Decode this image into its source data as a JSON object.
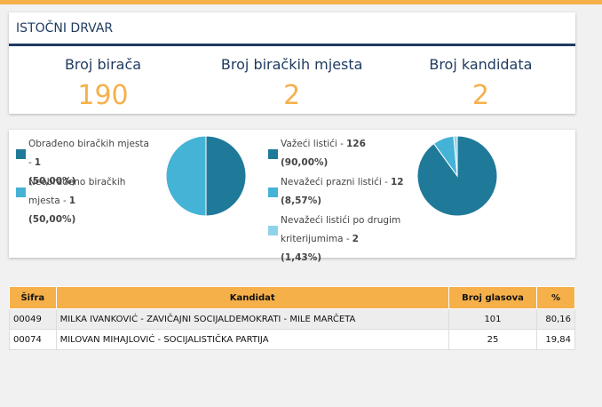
{
  "header": {
    "title": "ISTOČNI DRVAR"
  },
  "stats": [
    {
      "label": "Broj birača",
      "value": 190
    },
    {
      "label": "Broj biračkih mjesta",
      "value": 2
    },
    {
      "label": "Broj kandidata",
      "value": 2
    }
  ],
  "pies": [
    {
      "slices": [
        {
          "label": "Obrađeno biračkih mjesta -",
          "value": 1,
          "percent": "(50,00%)",
          "color": "#1f7a99"
        },
        {
          "label": "Neobrađeno biračkih mjesta -",
          "value": 1,
          "percent": "(50,00%)",
          "color": "#45b3d6"
        }
      ]
    },
    {
      "slices": [
        {
          "label": "Važeći listići -",
          "value": 126,
          "percent": "(90,00%)",
          "color": "#1f7a99"
        },
        {
          "label": "Nevažeći prazni listići -",
          "value": 12,
          "percent": "(8,57%)",
          "color": "#45b3d6"
        },
        {
          "label": "Nevažeći listići po drugim kriterijumima -",
          "value": 2,
          "percent": "(1,43%)",
          "color": "#8fd3ea"
        }
      ]
    }
  ],
  "table": {
    "columns": [
      "Šifra",
      "Kandidat",
      "Broj glasova",
      "%"
    ],
    "rows": [
      [
        "00049",
        "MILKA IVANKOVIĆ - ZAVIČAJNI SOCIJALDEMOKRATI - MILE MARČETA",
        101,
        "80,16"
      ],
      [
        "00074",
        "MILOVAN MIHAJLOVIĆ - SOCIJALISTIČKA PARTIJA",
        25,
        "19,84"
      ]
    ]
  }
}
